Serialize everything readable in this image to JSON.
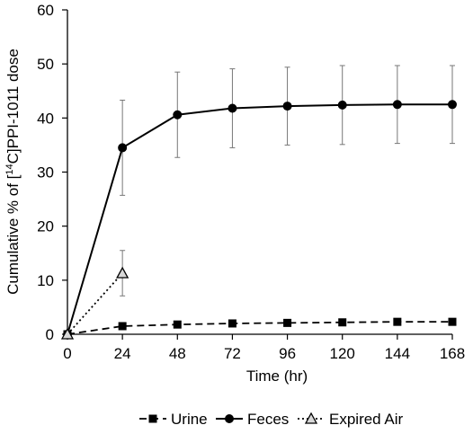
{
  "chart_data": {
    "type": "line",
    "xlabel": "Time (hr)",
    "ylabel": "Cumulative % of [14C]PPI-1011 dose",
    "ylabel_parts": {
      "before": "Cumulative % of [",
      "sup": "14",
      "after": "C]PPI-1011 dose"
    },
    "xlim": [
      0,
      168
    ],
    "ylim": [
      0,
      60
    ],
    "x_ticks": [
      0,
      24,
      48,
      72,
      96,
      120,
      144,
      168
    ],
    "y_ticks": [
      0,
      10,
      20,
      30,
      40,
      50,
      60
    ],
    "grid": false,
    "legend_position": "bottom",
    "series": [
      {
        "name": "Urine",
        "marker": "square",
        "line_style": "dashed",
        "color": "#000000",
        "x": [
          0,
          24,
          48,
          72,
          96,
          120,
          144,
          168
        ],
        "y": [
          0,
          1.5,
          1.8,
          2.0,
          2.1,
          2.2,
          2.3,
          2.3
        ],
        "error": [
          0,
          0,
          0,
          0,
          0,
          0,
          0,
          0
        ]
      },
      {
        "name": "Feces",
        "marker": "circle",
        "line_style": "solid",
        "color": "#000000",
        "x": [
          0,
          24,
          48,
          72,
          96,
          120,
          144,
          168
        ],
        "y": [
          0,
          34.5,
          40.6,
          41.8,
          42.2,
          42.4,
          42.5,
          42.5
        ],
        "error": [
          0,
          8.8,
          7.9,
          7.3,
          7.2,
          7.3,
          7.2,
          7.2
        ]
      },
      {
        "name": "Expired Air",
        "marker": "triangle",
        "line_style": "dotted",
        "color": "#000000",
        "x": [
          0,
          24
        ],
        "y": [
          0,
          11.3
        ],
        "error": [
          0,
          4.2
        ]
      }
    ]
  }
}
